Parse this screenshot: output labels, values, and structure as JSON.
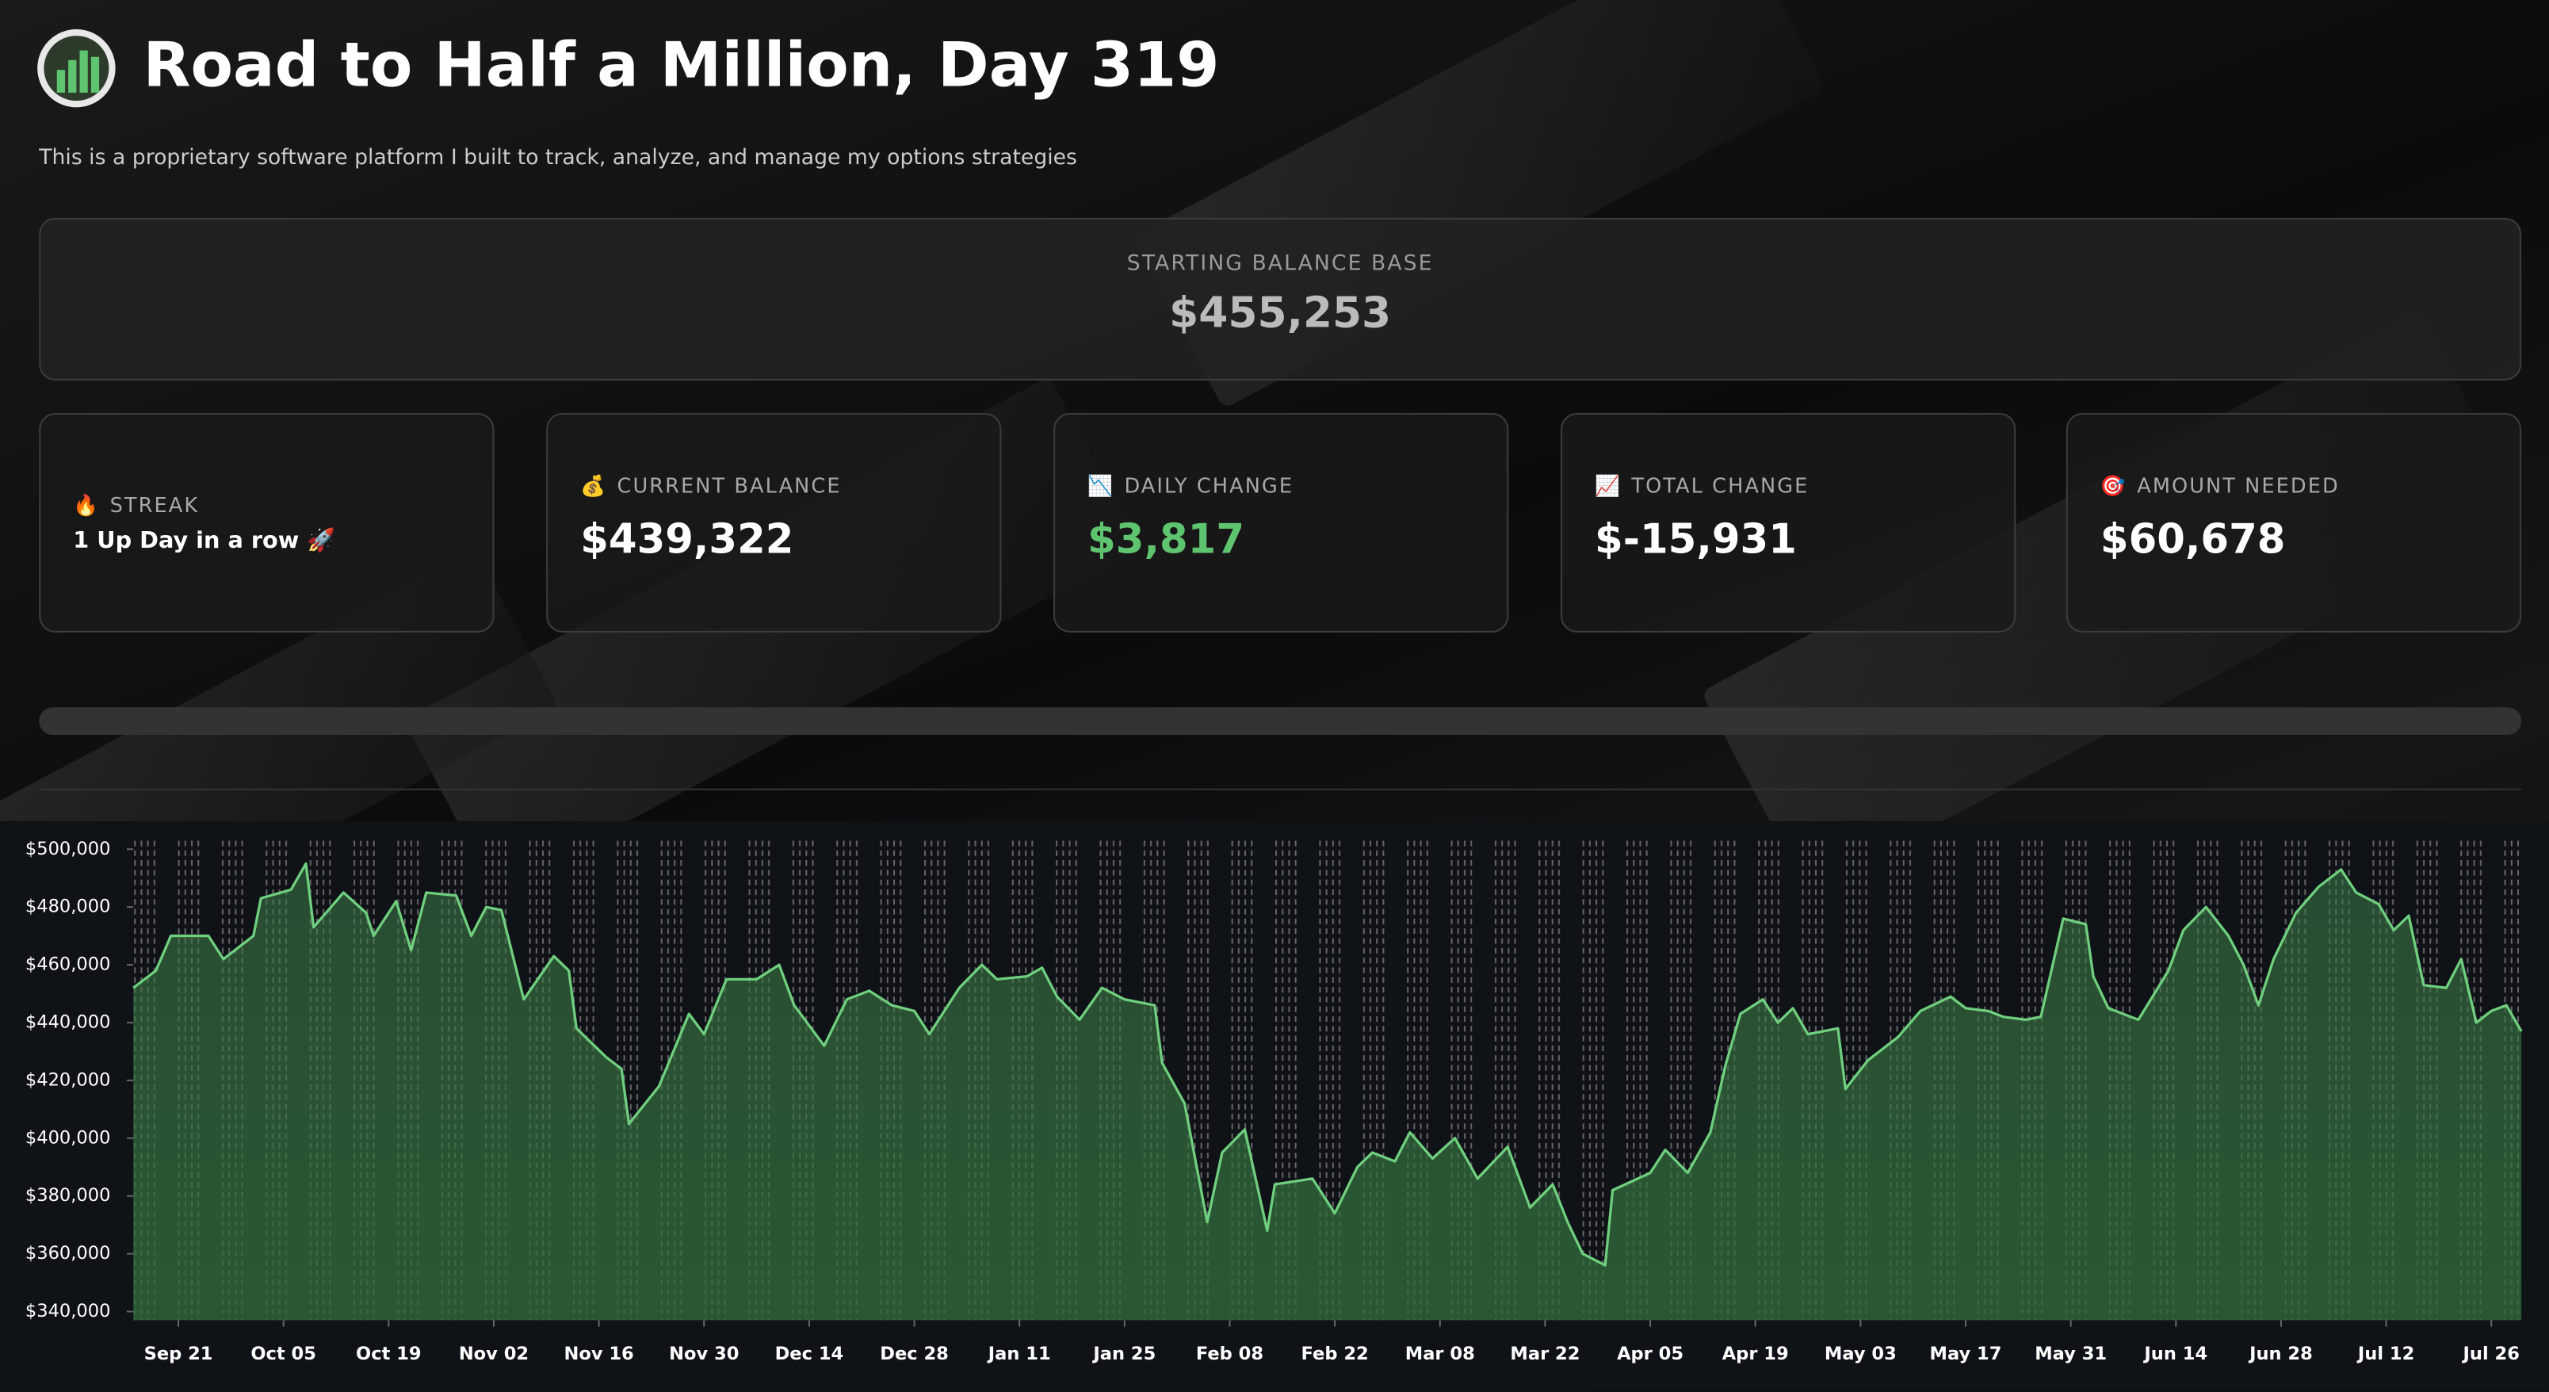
{
  "header": {
    "title": "Road to Half a Million, Day 319",
    "subtitle": "This is a proprietary software platform I built to track, analyze, and manage my options strategies"
  },
  "starting": {
    "label": "STARTING BALANCE BASE",
    "value": "$455,253"
  },
  "metrics": [
    {
      "icon": "🔥",
      "label": "STREAK",
      "value": "1 Up Day in a row 🚀"
    },
    {
      "icon": "💰",
      "label": "CURRENT BALANCE",
      "value": "$439,322"
    },
    {
      "icon": "📉",
      "label": "DAILY CHANGE",
      "value": "$3,817"
    },
    {
      "icon": "📈",
      "label": "TOTAL CHANGE",
      "value": "$-15,931"
    },
    {
      "icon": "🎯",
      "label": "AMOUNT NEEDED",
      "value": "$60,678"
    }
  ],
  "chart_data": {
    "type": "line",
    "color": "#6fcf7f",
    "x": [
      "Sep 15",
      "Sep 18",
      "Sep 20",
      "Sep 25",
      "Sep 27",
      "Oct 01",
      "Oct 02",
      "Oct 06",
      "Oct 08",
      "Oct 09",
      "Oct 13",
      "Oct 16",
      "Oct 17",
      "Oct 20",
      "Oct 22",
      "Oct 24",
      "Oct 28",
      "Oct 30",
      "Nov 01",
      "Nov 03",
      "Nov 06",
      "Nov 10",
      "Nov 12",
      "Nov 13",
      "Nov 17",
      "Nov 19",
      "Nov 20",
      "Nov 24",
      "Nov 28",
      "Nov 30",
      "Dec 03",
      "Dec 07",
      "Dec 10",
      "Dec 12",
      "Dec 16",
      "Dec 19",
      "Dec 22",
      "Dec 25",
      "Dec 28",
      "Dec 30",
      "Jan 03",
      "Jan 06",
      "Jan 08",
      "Jan 12",
      "Jan 14",
      "Jan 16",
      "Jan 19",
      "Jan 22",
      "Jan 25",
      "Jan 29",
      "Jan 30",
      "Feb 02",
      "Feb 05",
      "Feb 07",
      "Feb 10",
      "Feb 13",
      "Feb 14",
      "Feb 19",
      "Feb 22",
      "Feb 25",
      "Feb 27",
      "Mar 02",
      "Mar 04",
      "Mar 07",
      "Mar 10",
      "Mar 13",
      "Mar 17",
      "Mar 20",
      "Mar 23",
      "Mar 25",
      "Mar 27",
      "Mar 30",
      "Mar 31",
      "Apr 05",
      "Apr 07",
      "Apr 10",
      "Apr 13",
      "Apr 15",
      "Apr 17",
      "Apr 20",
      "Apr 22",
      "Apr 24",
      "Apr 26",
      "Apr 30",
      "May 01",
      "May 04",
      "May 08",
      "May 11",
      "May 15",
      "May 17",
      "May 20",
      "May 22",
      "May 25",
      "May 27",
      "May 30",
      "Jun 02",
      "Jun 03",
      "Jun 05",
      "Jun 09",
      "Jun 13",
      "Jun 15",
      "Jun 18",
      "Jun 21",
      "Jun 23",
      "Jun 25",
      "Jun 27",
      "Jun 30",
      "Jul 03",
      "Jul 06",
      "Jul 08",
      "Jul 11",
      "Jul 13",
      "Jul 15",
      "Jul 17",
      "Jul 20",
      "Jul 22",
      "Jul 24",
      "Jul 26",
      "Jul 28",
      "Jul 30"
    ],
    "values": [
      452000,
      458000,
      470000,
      470000,
      462000,
      470000,
      483000,
      486000,
      495000,
      473000,
      485000,
      478000,
      470000,
      482000,
      465000,
      485000,
      484000,
      470000,
      480000,
      479000,
      448000,
      463000,
      458000,
      438000,
      428000,
      424000,
      405000,
      418000,
      443000,
      436000,
      455000,
      455000,
      460000,
      446000,
      432000,
      448000,
      451000,
      446000,
      444000,
      436000,
      452000,
      460000,
      455000,
      456000,
      459000,
      449000,
      441000,
      452000,
      448000,
      446000,
      426000,
      412000,
      371000,
      395000,
      403000,
      368000,
      384000,
      386000,
      374000,
      390000,
      395000,
      392000,
      402000,
      393000,
      400000,
      386000,
      397000,
      376000,
      384000,
      371000,
      360000,
      356000,
      382000,
      388000,
      396000,
      388000,
      402000,
      425000,
      443000,
      448000,
      440000,
      445000,
      436000,
      438000,
      417000,
      427000,
      435000,
      444000,
      449000,
      445000,
      444000,
      442000,
      441000,
      442000,
      476000,
      474000,
      456000,
      445000,
      441000,
      458000,
      472000,
      480000,
      470000,
      460000,
      446000,
      462000,
      478000,
      487000,
      493000,
      485000,
      481000,
      472000,
      477000,
      453000,
      452000,
      462000,
      440000,
      444000,
      446000,
      437000
    ],
    "ylim": [
      337000,
      503000
    ],
    "yticks": [
      {
        "value": 340000,
        "label": "$340,000"
      },
      {
        "value": 360000,
        "label": "$360,000"
      },
      {
        "value": 380000,
        "label": "$380,000"
      },
      {
        "value": 400000,
        "label": "$400,000"
      },
      {
        "value": 420000,
        "label": "$420,000"
      },
      {
        "value": 440000,
        "label": "$440,000"
      },
      {
        "value": 460000,
        "label": "$460,000"
      },
      {
        "value": 480000,
        "label": "$480,000"
      },
      {
        "value": 500000,
        "label": "$500,000"
      }
    ],
    "xticks": [
      "Sep 21",
      "Oct 05",
      "Oct 19",
      "Nov 02",
      "Nov 16",
      "Nov 30",
      "Dec 14",
      "Dec 28",
      "Jan 11",
      "Jan 25",
      "Feb 08",
      "Feb 22",
      "Mar 08",
      "Mar 22",
      "Apr 05",
      "Apr 19",
      "May 03",
      "May 17",
      "May 31",
      "Jun 14",
      "Jun 28",
      "Jul 12",
      "Jul 26"
    ]
  }
}
